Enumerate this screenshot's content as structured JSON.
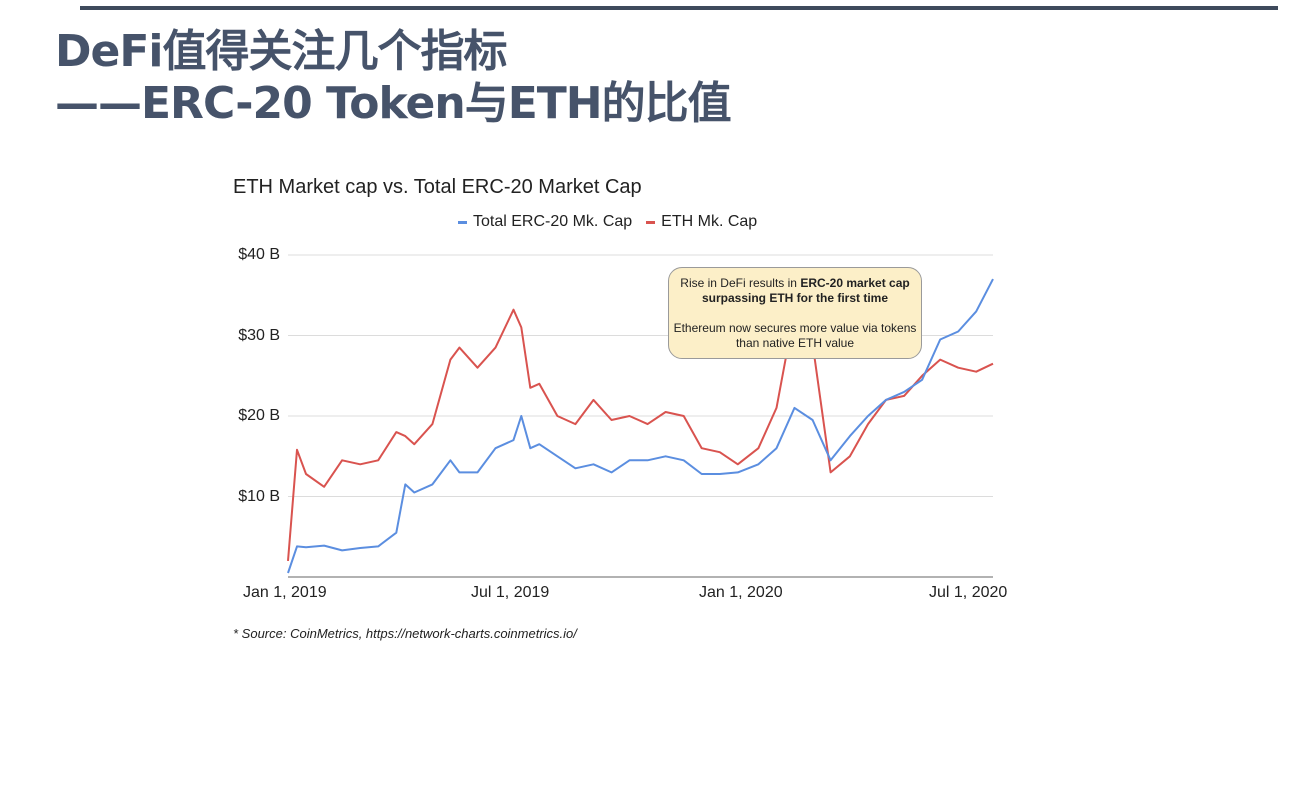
{
  "slide": {
    "title_line1": "DeFi值得关注几个指标",
    "title_line2": "——ERC-20 Token与ETH的比值",
    "source_note": "* Source: CoinMetrics, https://network-charts.coinmetrics.io/"
  },
  "callout": {
    "line1_normal": "Rise in DeFi results in ",
    "line1_bold": "ERC-20 market cap surpassing ETH for the first time",
    "line2": "Ethereum now secures more value via tokens than native ETH value",
    "background": "#fcefc8"
  },
  "chart_data": {
    "type": "line",
    "title": "ETH Market cap vs. Total ERC-20 Market Cap",
    "xlabel": "",
    "ylabel": "",
    "ylim": [
      0,
      40
    ],
    "y_unit": "$ Billion",
    "y_ticks": [
      "$40 B",
      "$30 B",
      "$20 B",
      "$10 B"
    ],
    "x_ticks": [
      "Jan 1, 2019",
      "Jul 1, 2019",
      "Jan 1, 2020",
      "Jul 1, 2020"
    ],
    "grid": true,
    "legend_position": "top",
    "x": [
      "2019-01-01",
      "2019-01-08",
      "2019-01-15",
      "2019-01-29",
      "2019-02-12",
      "2019-02-26",
      "2019-03-12",
      "2019-03-26",
      "2019-04-02",
      "2019-04-09",
      "2019-04-23",
      "2019-05-07",
      "2019-05-14",
      "2019-05-28",
      "2019-06-11",
      "2019-06-25",
      "2019-07-01",
      "2019-07-08",
      "2019-07-15",
      "2019-07-29",
      "2019-08-12",
      "2019-08-26",
      "2019-09-09",
      "2019-09-23",
      "2019-10-07",
      "2019-10-21",
      "2019-11-04",
      "2019-11-18",
      "2019-12-02",
      "2019-12-16",
      "2020-01-01",
      "2020-01-15",
      "2020-01-29",
      "2020-02-12",
      "2020-02-26",
      "2020-03-12",
      "2020-03-26",
      "2020-04-09",
      "2020-04-23",
      "2020-05-07",
      "2020-05-21",
      "2020-06-04",
      "2020-06-18",
      "2020-07-01"
    ],
    "series": [
      {
        "name": "Total ERC-20 Mk. Cap",
        "color": "#5b8ee0",
        "values": [
          0.5,
          3.8,
          3.7,
          3.9,
          3.3,
          3.6,
          3.8,
          5.5,
          11.5,
          10.5,
          11.5,
          14.5,
          13.0,
          13.0,
          16.0,
          17.0,
          20.0,
          16.0,
          16.5,
          15.0,
          13.5,
          14.0,
          13.0,
          14.5,
          14.5,
          15.0,
          14.5,
          12.8,
          12.8,
          13.0,
          14.0,
          16.0,
          21.0,
          19.5,
          14.5,
          17.5,
          20.0,
          22.0,
          23.0,
          24.5,
          29.5,
          30.5,
          33.0,
          37.0
        ]
      },
      {
        "name": "ETH Mk. Cap",
        "color": "#d9534f",
        "values": [
          2.0,
          15.8,
          12.8,
          11.2,
          14.5,
          14.0,
          14.5,
          18.0,
          17.5,
          16.5,
          19.0,
          27.0,
          28.5,
          26.0,
          28.5,
          33.2,
          31.0,
          23.5,
          24.0,
          20.0,
          19.0,
          22.0,
          19.5,
          20.0,
          19.0,
          20.5,
          20.0,
          16.0,
          15.5,
          14.0,
          16.0,
          21.0,
          33.0,
          29.0,
          13.0,
          15.0,
          19.0,
          22.0,
          22.5,
          25.0,
          27.0,
          26.0,
          25.5,
          26.5
        ]
      }
    ]
  }
}
